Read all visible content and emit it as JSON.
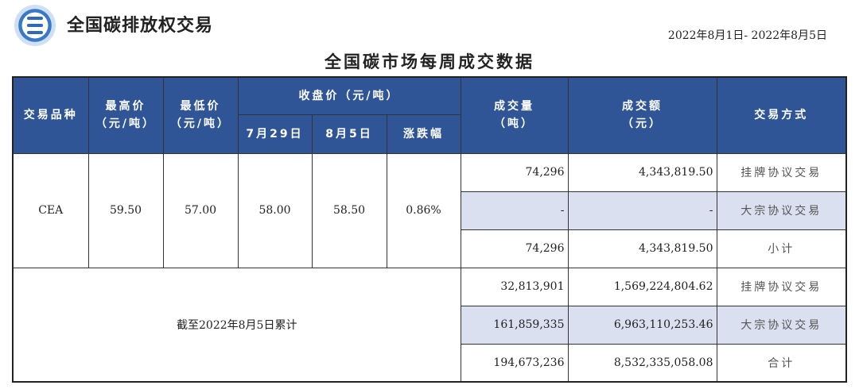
{
  "header": {
    "brand": "全国碳排放权交易",
    "date_range": "2022年8月1日- 2022年8月5日",
    "title": "全国碳市场每周成交数据"
  },
  "table": {
    "columns": {
      "product": "交易品种",
      "high": [
        "最高价",
        "（元/吨）"
      ],
      "low": [
        "最低价",
        "（元/吨）"
      ],
      "close_group": "收盘价（元/吨）",
      "close_prev": "7月29日",
      "close_curr": "8月5日",
      "change": "涨跌幅",
      "volume": [
        "成交量",
        "（吨）"
      ],
      "amount": [
        "成交额",
        "（元）"
      ],
      "mode": "交易方式"
    },
    "weekly": {
      "product": "CEA",
      "high": "59.50",
      "low": "57.00",
      "close_prev": "58.00",
      "close_curr": "58.50",
      "change": "0.86%",
      "rows": [
        {
          "volume": "74,296",
          "amount": "4,343,819.50",
          "mode": "挂牌协议交易"
        },
        {
          "volume": "-",
          "amount": "-",
          "mode": "大宗协议交易"
        },
        {
          "volume": "74,296",
          "amount": "4,343,819.50",
          "mode": "小计"
        }
      ]
    },
    "cumulative": {
      "label": "截至2022年8月5日累计",
      "rows": [
        {
          "volume": "32,813,901",
          "amount": "1,569,224,804.62",
          "mode": "挂牌协议交易"
        },
        {
          "volume": "161,859,335",
          "amount": "6,963,110,253.46",
          "mode": "大宗协议交易"
        },
        {
          "volume": "194,673,236",
          "amount": "8,532,335,058.08",
          "mode": "合计"
        }
      ]
    }
  },
  "colors": {
    "header_bg": "#2f5597",
    "alt_row": "#dae0f0"
  }
}
